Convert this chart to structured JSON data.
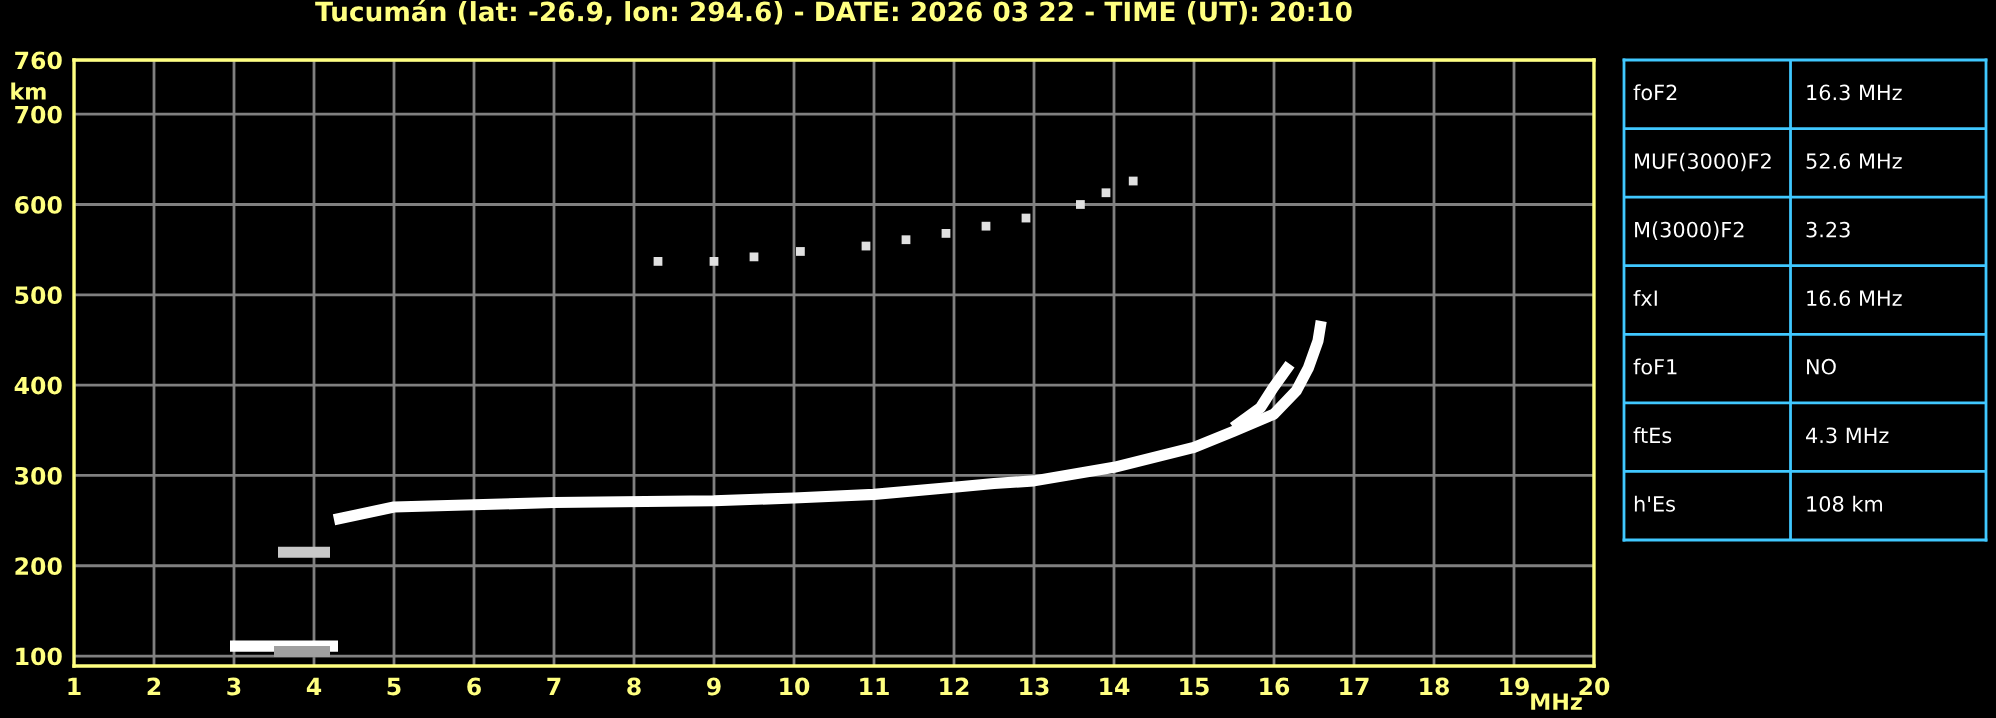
{
  "chart_data": [
    {
      "type": "line",
      "title": "Tucumán (lat: -26.9, lon: 294.6) - DATE: 2026 03 22 - TIME (UT): 20:10",
      "xlabel": "MHz",
      "ylabel": "km",
      "xlim": [
        1,
        20
      ],
      "ylim": [
        89,
        760
      ],
      "xticks": [
        1,
        2,
        3,
        4,
        5,
        6,
        7,
        8,
        9,
        10,
        11,
        12,
        13,
        14,
        15,
        16,
        17,
        18,
        19,
        20
      ],
      "yticks": [
        100,
        200,
        300,
        400,
        500,
        600,
        700,
        760
      ],
      "grid": true,
      "legend": false,
      "series": [
        {
          "color": "#ffffff",
          "x": [
            4.25,
            5,
            7,
            9,
            10,
            11,
            12,
            12.5,
            13,
            14,
            15,
            15.5,
            16,
            16.28,
            16.43,
            16.55,
            16.59
          ],
          "values": [
            251,
            265,
            270,
            272,
            275,
            279,
            287,
            291,
            294,
            309,
            331,
            349,
            368,
            394,
            419,
            449,
            471
          ]
        },
        {
          "color": "#ffffff",
          "x": [
            15.49,
            15.83,
            15.99,
            16.2
          ],
          "values": [
            353,
            375,
            397,
            423
          ]
        },
        {
          "color": "#ffffff",
          "x": [
            2.95,
            4.3
          ],
          "values": [
            111,
            111
          ]
        },
        {
          "color": "#a0a0a0",
          "x": [
            3.5,
            4.2
          ],
          "values": [
            105,
            105
          ]
        },
        {
          "color": "#c8c8c8",
          "x": [
            3.55,
            4.2
          ],
          "values": [
            215,
            215
          ]
        },
        {
          "type": "scatter",
          "marker": "square",
          "color": "#e0e0e0",
          "x": [
            8.3,
            9,
            9.5,
            10.08,
            10.9,
            11.4,
            11.9,
            12.4,
            12.9,
            13.58,
            13.9,
            14.24
          ],
          "values": [
            537,
            537,
            542,
            548,
            554,
            561,
            568,
            576,
            585,
            600,
            613,
            626
          ]
        }
      ]
    },
    {
      "type": "other",
      "categories": [
        "foF2",
        "MUF(3000)F2",
        "M(3000)F2",
        "fxI",
        "foF1",
        "ftEs",
        "h'Es"
      ],
      "value_labels": [
        "16.3 MHz",
        "52.6 MHz",
        "3.23",
        "16.6 MHz",
        "NO",
        "4.3 MHz",
        "108 km"
      ]
    }
  ]
}
